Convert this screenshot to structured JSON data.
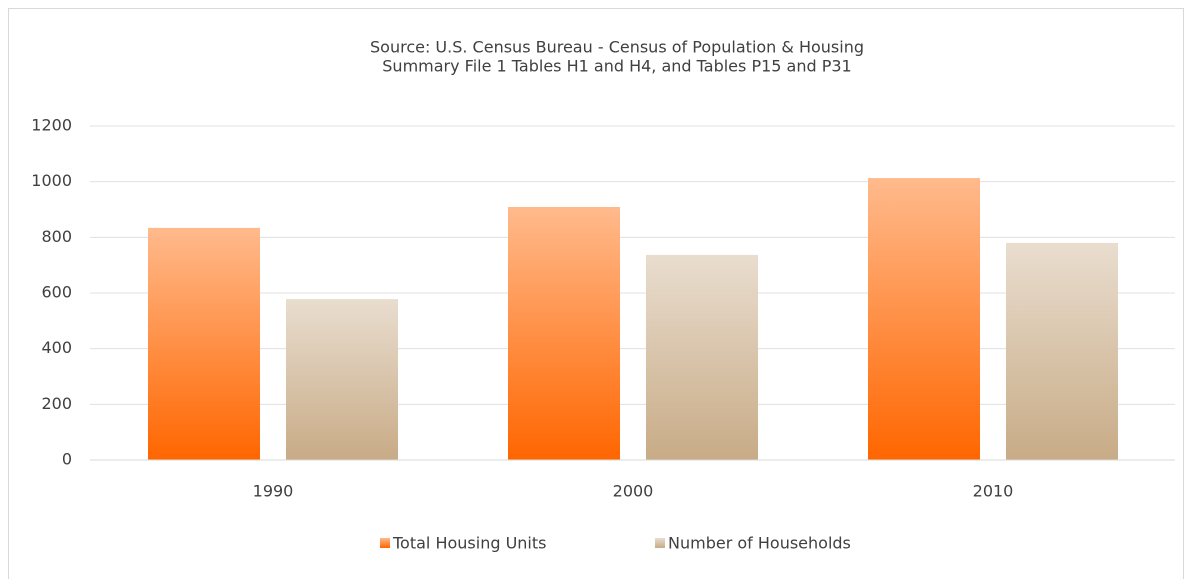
{
  "chart_data": {
    "type": "bar",
    "title": [
      "Source: U.S. Census Bureau - Census of Population & Housing",
      "Summary File 1 Tables H1 and H4, and Tables P15 and P31"
    ],
    "categories": [
      "1990",
      "2000",
      "2010"
    ],
    "series": [
      {
        "name": "Total Housing Units",
        "color": "#ff6600",
        "values": [
          834,
          909,
          1013
        ]
      },
      {
        "name": "Number of Households",
        "color": "#c8ab86",
        "values": [
          578,
          737,
          780
        ]
      }
    ],
    "ylim": [
      0,
      1200
    ],
    "yticks": [
      0,
      200,
      400,
      600,
      800,
      1000,
      1200
    ],
    "grid": true,
    "legend": "bottom"
  }
}
